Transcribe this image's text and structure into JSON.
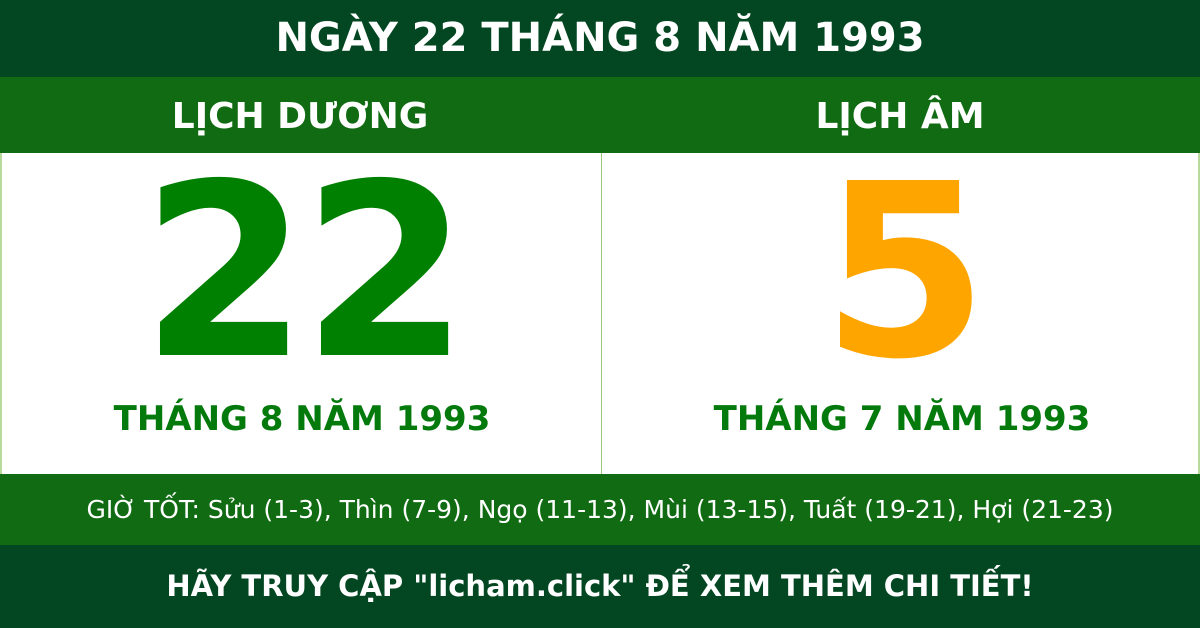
{
  "title": "NGÀY 22 THÁNG 8 NĂM 1993",
  "solar": {
    "heading": "LỊCH DƯƠNG",
    "day": "22",
    "month_year": "THÁNG 8 NĂM 1993"
  },
  "lunar": {
    "heading": "LỊCH ÂM",
    "day": "5",
    "month_year": "THÁNG 7 NĂM 1993"
  },
  "good_hours": "GIỜ TỐT: Sửu (1-3), Thìn (7-9), Ngọ (11-13), Mùi (13-15), Tuất (19-21), Hợi (21-23)",
  "footer": "HÃY TRUY CẬP \"licham.click\" ĐỂ XEM THÊM CHI TIẾT!",
  "colors": {
    "dark_green": "#034722",
    "mid_green": "#116b12",
    "solar_day": "#008000",
    "lunar_day": "#ffa500"
  }
}
